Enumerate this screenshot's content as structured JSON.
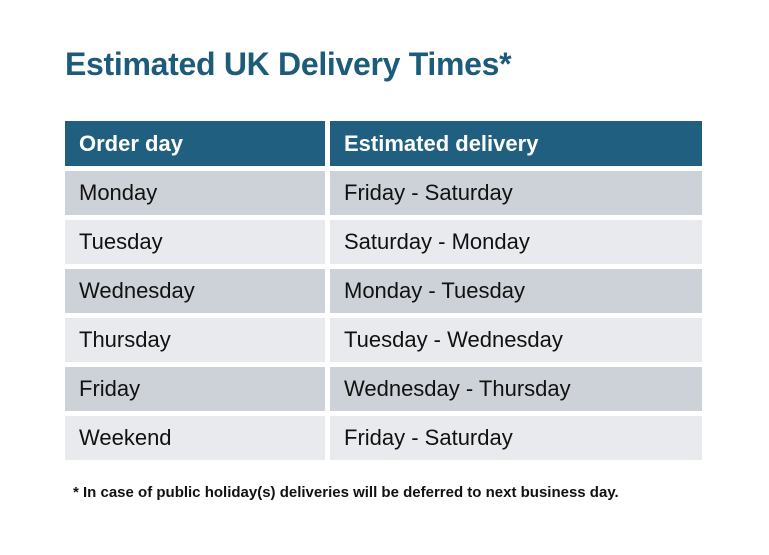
{
  "page": {
    "title": "Estimated UK Delivery Times*",
    "footnote": "* In case of public holiday(s) deliveries will be deferred to next business day."
  },
  "table": {
    "headers": {
      "order_day": "Order day",
      "estimated_delivery": "Estimated delivery"
    },
    "rows": [
      {
        "order_day": "Monday",
        "estimated_delivery": "Friday - Saturday"
      },
      {
        "order_day": "Tuesday",
        "estimated_delivery": "Saturday - Monday"
      },
      {
        "order_day": "Wednesday",
        "estimated_delivery": "Monday - Tuesday"
      },
      {
        "order_day": "Thursday",
        "estimated_delivery": "Tuesday - Wednesday"
      },
      {
        "order_day": "Friday",
        "estimated_delivery": "Wednesday - Thursday"
      },
      {
        "order_day": "Weekend",
        "estimated_delivery": "Friday - Saturday"
      }
    ]
  },
  "colors": {
    "accent_teal": "#215F80",
    "title_text": "#1D5B7B",
    "row_dark": "#CDD2D8",
    "row_light": "#E8EAED",
    "cell_text": "#111111"
  },
  "chart_data": {
    "type": "table",
    "title": "Estimated UK Delivery Times*",
    "columns": [
      "Order day",
      "Estimated delivery"
    ],
    "rows": [
      [
        "Monday",
        "Friday - Saturday"
      ],
      [
        "Tuesday",
        "Saturday - Monday"
      ],
      [
        "Wednesday",
        "Monday - Tuesday"
      ],
      [
        "Thursday",
        "Tuesday - Wednesday"
      ],
      [
        "Friday",
        "Wednesday - Thursday"
      ],
      [
        "Weekend",
        "Friday - Saturday"
      ]
    ],
    "footnote": "* In case of public holiday(s) deliveries will be deferred to next business day.",
    "layout": {
      "header_background": "#215F80",
      "row_colors_alternate": [
        "#CDD2D8",
        "#E8EAED"
      ],
      "grid": "white gaps between cells"
    }
  }
}
